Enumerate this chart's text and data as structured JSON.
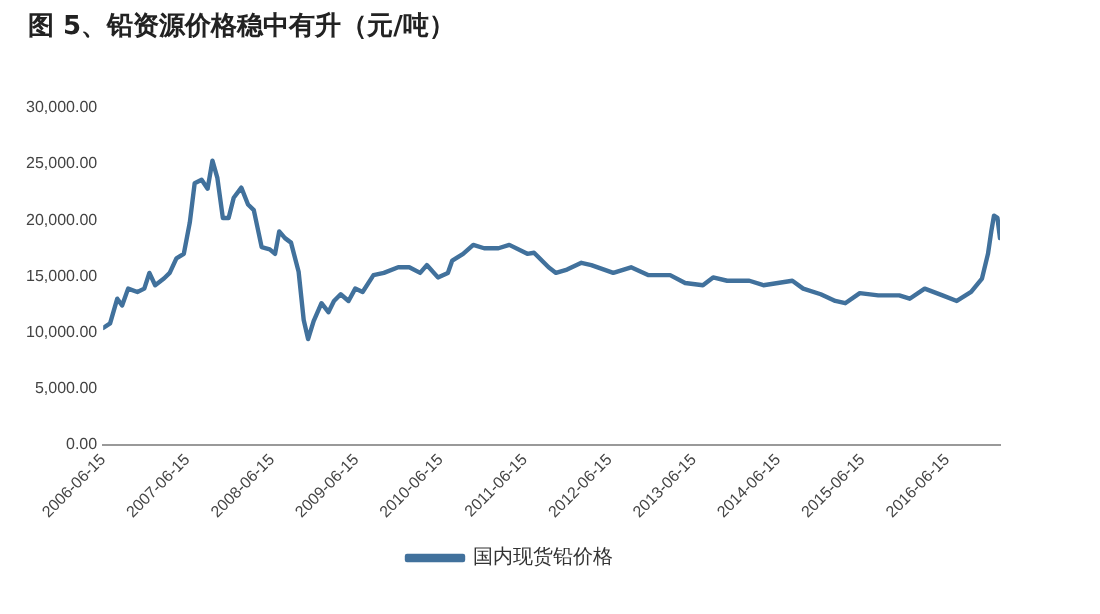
{
  "chart_data": {
    "type": "line",
    "title": "图 5、铅资源价格稳中有升（元/吨）",
    "x": [
      "2006-06-15",
      "2006-07-15",
      "2006-08-15",
      "2006-09-05",
      "2006-10-01",
      "2006-11-10",
      "2006-12-10",
      "2007-01-01",
      "2007-01-26",
      "2007-03-05",
      "2007-03-30",
      "2007-04-28",
      "2007-05-30",
      "2007-06-25",
      "2007-07-16",
      "2007-08-15",
      "2007-09-10",
      "2007-10-01",
      "2007-10-22",
      "2007-11-15",
      "2007-12-10",
      "2008-01-01",
      "2008-02-03",
      "2008-03-03",
      "2008-03-28",
      "2008-05-01",
      "2008-06-05",
      "2008-06-28",
      "2008-07-16",
      "2008-08-10",
      "2008-09-05",
      "2008-10-08",
      "2008-10-30",
      "2008-11-18",
      "2008-12-12",
      "2009-01-15",
      "2009-02-14",
      "2009-03-10",
      "2009-04-08",
      "2009-05-12",
      "2009-06-10",
      "2009-07-12",
      "2009-08-28",
      "2009-10-12",
      "2009-12-13",
      "2010-01-30",
      "2010-03-18",
      "2010-04-16",
      "2010-06-03",
      "2010-07-16",
      "2010-08-04",
      "2010-09-20",
      "2010-11-03",
      "2010-12-20",
      "2011-02-20",
      "2011-04-08",
      "2011-06-25",
      "2011-07-24",
      "2011-09-25",
      "2011-10-27",
      "2011-12-14",
      "2012-02-14",
      "2012-03-28",
      "2012-07-01",
      "2012-09-16",
      "2012-12-01",
      "2013-03-04",
      "2013-05-08",
      "2013-07-24",
      "2013-09-06",
      "2013-11-06",
      "2014-02-10",
      "2014-04-12",
      "2014-08-15",
      "2014-10-01",
      "2014-12-16",
      "2015-02-17",
      "2015-04-01",
      "2015-06-03",
      "2015-08-22",
      "2015-11-21",
      "2016-01-05",
      "2016-03-10",
      "2016-05-26",
      "2016-07-27",
      "2016-09-27",
      "2016-11-13",
      "2016-12-09",
      "2016-12-24",
      "2017-01-04",
      "2017-01-19",
      "2017-01-30"
    ],
    "series": [
      {
        "name": "国内现货铅价格",
        "color": "#41719c",
        "values": [
          10400,
          10800,
          13000,
          12400,
          13900,
          13600,
          13900,
          15300,
          14200,
          14800,
          15300,
          16600,
          17000,
          19800,
          23300,
          23600,
          22800,
          25300,
          23800,
          20200,
          20200,
          22000,
          22900,
          21400,
          20900,
          17600,
          17400,
          17000,
          19000,
          18400,
          18000,
          15400,
          11100,
          9400,
          11000,
          12600,
          11800,
          12800,
          13400,
          12800,
          13900,
          13600,
          15100,
          15300,
          15800,
          15800,
          15300,
          16000,
          14900,
          15300,
          16400,
          17000,
          17800,
          17500,
          17500,
          17800,
          17000,
          17100,
          15800,
          15300,
          15600,
          16200,
          16000,
          15300,
          15800,
          15100,
          15100,
          14400,
          14200,
          14900,
          14600,
          14600,
          14200,
          14600,
          13900,
          13400,
          12800,
          12600,
          13500,
          13300,
          13300,
          13000,
          13900,
          13300,
          12800,
          13600,
          14800,
          17000,
          19100,
          20400,
          20200,
          18400
        ]
      }
    ],
    "xlim": [
      "2006-06-15",
      "2017-01-30"
    ],
    "xticks": [
      "2006-06-15",
      "2007-06-15",
      "2008-06-15",
      "2009-06-15",
      "2010-06-15",
      "2011-06-15",
      "2012-06-15",
      "2013-06-15",
      "2014-06-15",
      "2015-06-15",
      "2016-06-15"
    ],
    "ylim": [
      0,
      30000
    ],
    "yticks": [
      {
        "value": 0,
        "label": "0.00"
      },
      {
        "value": 5000,
        "label": "5,000.00"
      },
      {
        "value": 10000,
        "label": "10,000.00"
      },
      {
        "value": 15000,
        "label": "15,000.00"
      },
      {
        "value": 20000,
        "label": "20,000.00"
      },
      {
        "value": 25000,
        "label": "25,000.00"
      },
      {
        "value": 30000,
        "label": "30,000.00"
      }
    ],
    "grid": false,
    "legend": "bottom",
    "marker": "none",
    "line_style": "solid"
  }
}
